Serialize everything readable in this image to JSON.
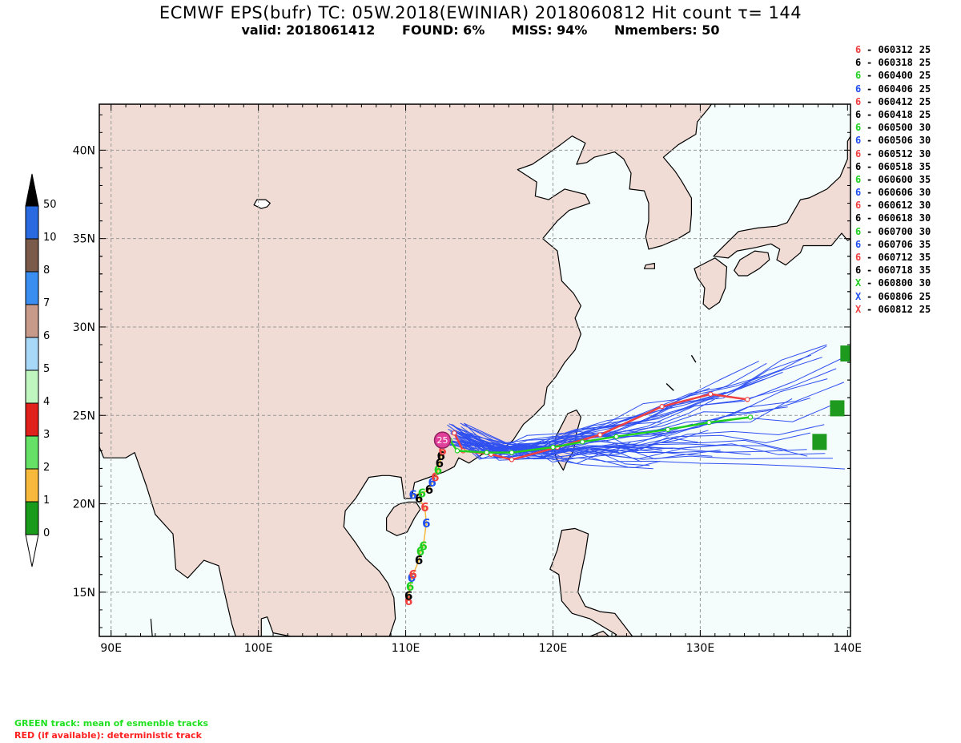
{
  "title": "ECMWF EPS(bufr) TC: 05W.2018(EWINIAR) 2018060812 Hit count   τ= 144",
  "subtitle": {
    "valid": "valid: 2018061412",
    "found": "FOUND:   6%",
    "miss": "MISS: 94%",
    "members": "Nmembers: 50"
  },
  "axes": {
    "lon_labels": [
      "90E",
      "100E",
      "110E",
      "120E",
      "130E",
      "140E"
    ],
    "lat_labels": [
      "40N",
      "35N",
      "30N",
      "25N",
      "20N",
      "15N"
    ],
    "lon_range": [
      89.2,
      140.2
    ],
    "lat_range": [
      12.5,
      42.6
    ]
  },
  "colorbar": {
    "labels": [
      "0",
      "1",
      "2",
      "3",
      "4",
      "5",
      "6",
      "7",
      "8",
      "10",
      "50"
    ],
    "colors": [
      "#1a9a1a",
      "#f6b93b",
      "#66e066",
      "#e0201a",
      "#bff5bf",
      "#a8d8f7",
      "#c89a8a",
      "#3a8ef0",
      "#7a5a4a",
      "#2a6ae0"
    ],
    "top_color": "#000000",
    "bottom_color": "#ffffff"
  },
  "legend": [
    {
      "symbol": "6",
      "color": "#f04040",
      "label": "- 060312",
      "count": "25"
    },
    {
      "symbol": "6",
      "color": "#000000",
      "label": "- 060318",
      "count": "25"
    },
    {
      "symbol": "6",
      "color": "#20d020",
      "label": "- 060400",
      "count": "25"
    },
    {
      "symbol": "6",
      "color": "#2050f0",
      "label": "- 060406",
      "count": "25"
    },
    {
      "symbol": "6",
      "color": "#f04040",
      "label": "- 060412",
      "count": "25"
    },
    {
      "symbol": "6",
      "color": "#000000",
      "label": "- 060418",
      "count": "25"
    },
    {
      "symbol": "6",
      "color": "#20d020",
      "label": "- 060500",
      "count": "30"
    },
    {
      "symbol": "6",
      "color": "#2050f0",
      "label": "- 060506",
      "count": "30"
    },
    {
      "symbol": "6",
      "color": "#f04040",
      "label": "- 060512",
      "count": "30"
    },
    {
      "symbol": "6",
      "color": "#000000",
      "label": "- 060518",
      "count": "35"
    },
    {
      "symbol": "6",
      "color": "#20d020",
      "label": "- 060600",
      "count": "35"
    },
    {
      "symbol": "6",
      "color": "#2050f0",
      "label": "- 060606",
      "count": "30"
    },
    {
      "symbol": "6",
      "color": "#f04040",
      "label": "- 060612",
      "count": "30"
    },
    {
      "symbol": "6",
      "color": "#000000",
      "label": "- 060618",
      "count": "30"
    },
    {
      "symbol": "6",
      "color": "#20d020",
      "label": "- 060700",
      "count": "30"
    },
    {
      "symbol": "6",
      "color": "#2050f0",
      "label": "- 060706",
      "count": "35"
    },
    {
      "symbol": "6",
      "color": "#f04040",
      "label": "- 060712",
      "count": "35"
    },
    {
      "symbol": "6",
      "color": "#000000",
      "label": "- 060718",
      "count": "35"
    },
    {
      "symbol": "X",
      "color": "#20d020",
      "label": "- 060800",
      "count": "30"
    },
    {
      "symbol": "X",
      "color": "#2050f0",
      "label": "- 060806",
      "count": "25"
    },
    {
      "symbol": "X",
      "color": "#f04040",
      "label": "- 060812",
      "count": "25"
    }
  ],
  "notes": {
    "green": "GREEN track: mean of esmenble tracks",
    "red": "RED (if available): deterministic track",
    "green_color": "#20e020",
    "red_color": "#ff2020"
  },
  "map_colors": {
    "land": "#f0dcd4",
    "sea": "#f4fcfc",
    "coast": "#000000",
    "grid": "#999999",
    "members": "#3050f0",
    "mean": "#20d020",
    "deterministic": "#f04040",
    "hit_box": "#1e9a1e"
  },
  "hit_count_label": "25",
  "hit_boxes": [
    {
      "lon": 140.0,
      "lat": 28.5
    },
    {
      "lon": 139.3,
      "lat": 25.4
    },
    {
      "lon": 138.1,
      "lat": 23.5
    }
  ],
  "mean_track": [
    [
      113.0,
      23.6
    ],
    [
      113.5,
      23.0
    ],
    [
      115.5,
      22.9
    ],
    [
      117.2,
      22.9
    ],
    [
      120.0,
      23.2
    ],
    [
      122.0,
      23.5
    ],
    [
      124.3,
      23.8
    ],
    [
      127.8,
      24.2
    ],
    [
      130.6,
      24.6
    ],
    [
      133.4,
      24.9
    ]
  ],
  "deterministic_track": [
    [
      113.3,
      24.0
    ],
    [
      113.9,
      23.0
    ],
    [
      115.8,
      22.8
    ],
    [
      117.2,
      22.5
    ],
    [
      120.3,
      23.2
    ],
    [
      123.2,
      23.9
    ],
    [
      127.4,
      25.5
    ],
    [
      130.7,
      26.2
    ],
    [
      133.2,
      25.9
    ]
  ],
  "observed_track": [
    {
      "lon": 110.2,
      "lat": 14.5,
      "color": "#f04040"
    },
    {
      "lon": 110.2,
      "lat": 14.8,
      "color": "#000000"
    },
    {
      "lon": 110.3,
      "lat": 15.3,
      "color": "#20d020"
    },
    {
      "lon": 110.4,
      "lat": 15.8,
      "color": "#2050f0"
    },
    {
      "lon": 110.5,
      "lat": 16.0,
      "color": "#f04040"
    },
    {
      "lon": 110.9,
      "lat": 16.8,
      "color": "#000000"
    },
    {
      "lon": 111.0,
      "lat": 17.3,
      "color": "#20d020"
    },
    {
      "lon": 111.2,
      "lat": 17.6,
      "color": "#20d020"
    },
    {
      "lon": 111.4,
      "lat": 18.9,
      "color": "#2050f0"
    },
    {
      "lon": 111.3,
      "lat": 19.8,
      "color": "#f04040"
    },
    {
      "lon": 110.9,
      "lat": 20.3,
      "color": "#000000"
    },
    {
      "lon": 110.5,
      "lat": 20.5,
      "color": "#2050f0"
    },
    {
      "lon": 111.1,
      "lat": 20.6,
      "color": "#20d020"
    },
    {
      "lon": 111.6,
      "lat": 20.8,
      "color": "#000000"
    },
    {
      "lon": 111.8,
      "lat": 21.2,
      "color": "#2050f0"
    },
    {
      "lon": 112.0,
      "lat": 21.5,
      "color": "#f04040"
    },
    {
      "lon": 112.2,
      "lat": 21.9,
      "color": "#20d020"
    },
    {
      "lon": 112.3,
      "lat": 22.3,
      "color": "#000000"
    },
    {
      "lon": 112.4,
      "lat": 22.7,
      "color": "#000000"
    },
    {
      "lon": 112.5,
      "lat": 23.0,
      "color": "#f04040"
    }
  ]
}
